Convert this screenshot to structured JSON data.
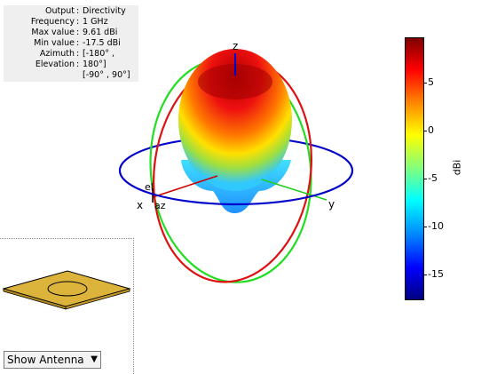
{
  "info_panel": {
    "rows": [
      {
        "key": "Output",
        "value": "Directivity"
      },
      {
        "key": "Frequency",
        "value": "1 GHz"
      },
      {
        "key": "Max value",
        "value": "9.61 dBi"
      },
      {
        "key": "Min value",
        "value": "-17.5 dBi"
      },
      {
        "key": "Azimuth",
        "value": "[-180° ,"
      },
      {
        "key": "Elevation",
        "value": "180°]"
      }
    ],
    "extra": "[-90° , 90°]"
  },
  "axes": {
    "x": "x",
    "y": "y",
    "z": "z",
    "el": "el",
    "az": "az"
  },
  "colorbar": {
    "ticks": [
      "5",
      "0",
      "-5",
      "-10",
      "-15"
    ],
    "unit": "dBi",
    "colors": {
      "top": "#7f0000",
      "bottom": "#00007f"
    }
  },
  "colors": {
    "azimuth_ring": "#0000cc",
    "elevation_ring_red": "#dd1111",
    "elevation_ring_green": "#22dd22",
    "patch": "#dcb43c"
  },
  "antenna_select": {
    "selected": "Show Antenna"
  }
}
